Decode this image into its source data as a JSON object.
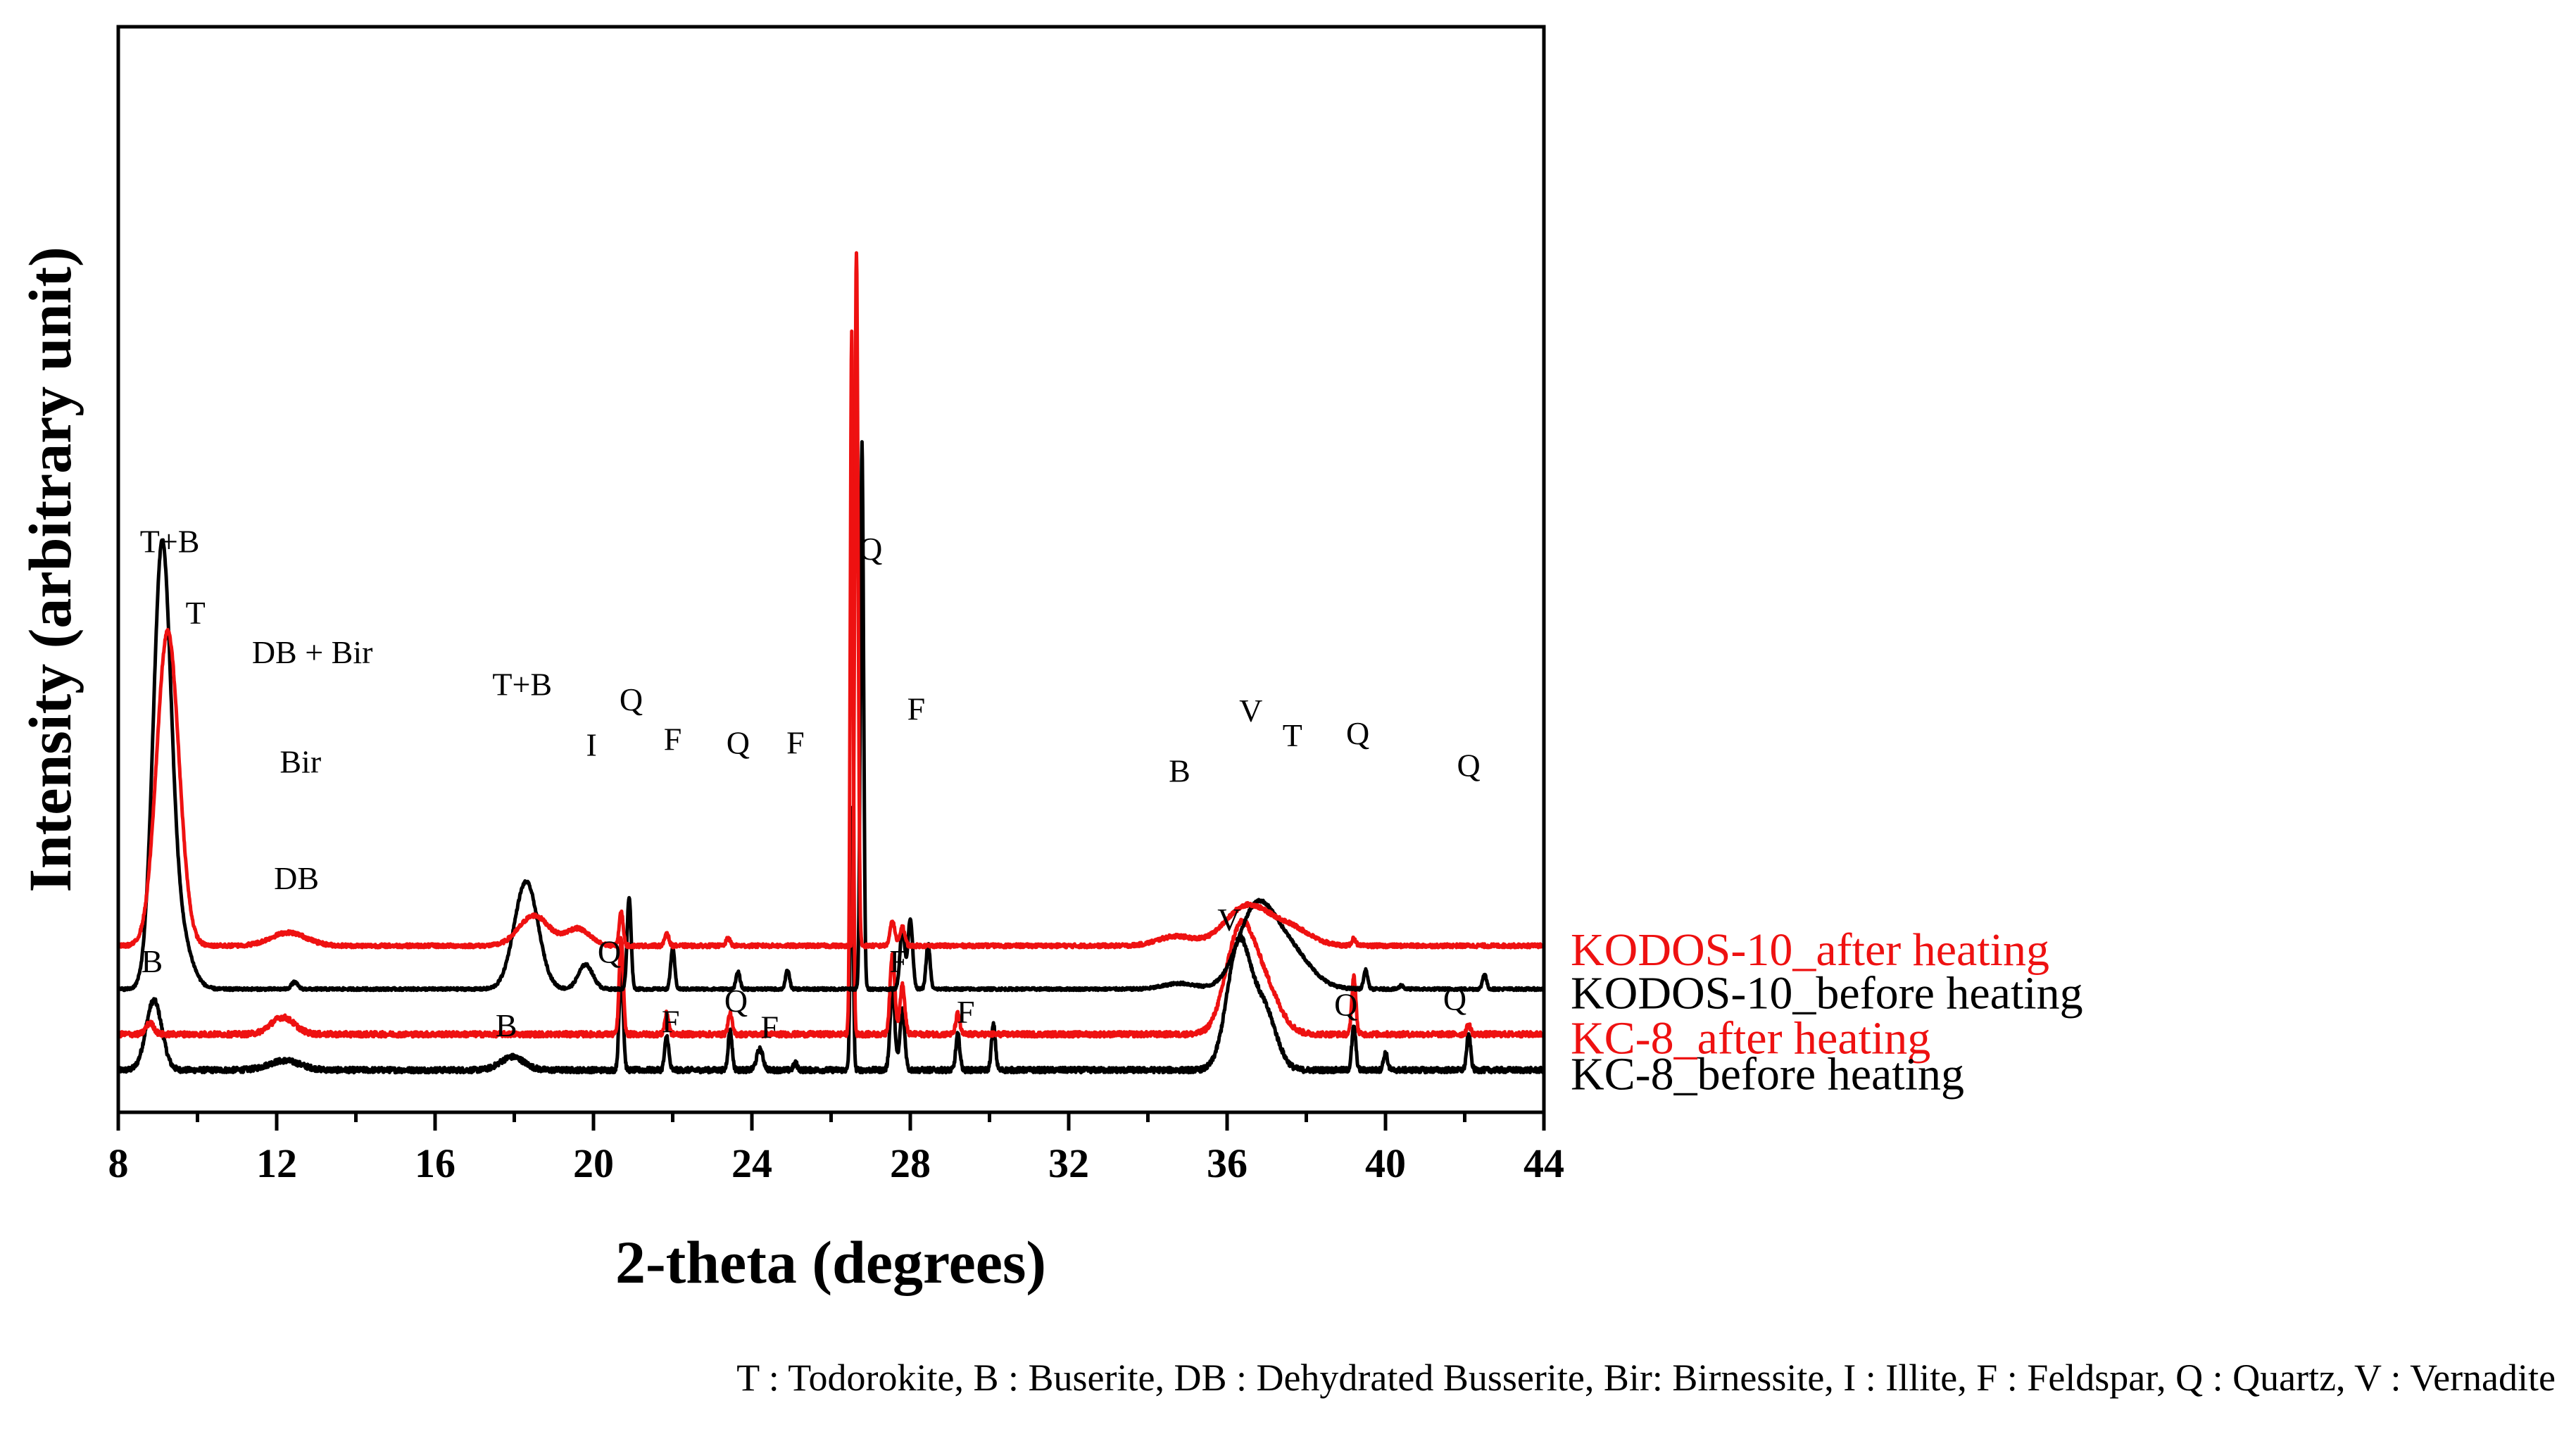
{
  "chart_data": {
    "type": "line",
    "xlabel": "2-theta (degrees)",
    "ylabel": "Intensity (arbitrary unit)",
    "xlim": [
      8,
      44
    ],
    "xticks": [
      "8",
      "12",
      "16",
      "20",
      "24",
      "28",
      "32",
      "36",
      "40",
      "44"
    ],
    "yticks_shown": false,
    "legend_text": "T : Todorokite, B : Buserite, DB : Dehydrated Busserite, Bir: Birnessite, I : Illite, F : Feldspar, Q : Quartz, V : Vernadite",
    "colors": {
      "black_series": "#000000",
      "red_series": "#ee1111"
    },
    "series": [
      {
        "name": "KODOS-10_after heating",
        "color": "#ee1111",
        "baseline": 3.3,
        "noise": 0.05,
        "peaks": [
          {
            "x": 9.25,
            "h": 8.35,
            "w": 0.28
          },
          {
            "x": 12.3,
            "h": 0.35,
            "w": 0.45
          },
          {
            "x": 18.5,
            "h": 0.8,
            "w": 0.38
          },
          {
            "x": 19.6,
            "h": 0.45,
            "w": 0.3
          },
          {
            "x": 20.7,
            "h": 0.9,
            "w": 0.05
          },
          {
            "x": 21.85,
            "h": 0.35,
            "w": 0.05
          },
          {
            "x": 23.4,
            "h": 0.2,
            "w": 0.05
          },
          {
            "x": 26.64,
            "h": 18.4,
            "w": 0.04
          },
          {
            "x": 27.55,
            "h": 0.65,
            "w": 0.06
          },
          {
            "x": 27.8,
            "h": 0.5,
            "w": 0.06
          },
          {
            "x": 34.7,
            "h": 0.25,
            "w": 0.45
          },
          {
            "x": 36.5,
            "h": 1.05,
            "w": 0.55
          },
          {
            "x": 37.6,
            "h": 0.45,
            "w": 0.5
          },
          {
            "x": 39.2,
            "h": 0.2,
            "w": 0.05
          }
        ]
      },
      {
        "name": "KODOS-10_before heating",
        "color": "#000000",
        "baseline": 2.15,
        "noise": 0.035,
        "peaks": [
          {
            "x": 9.1,
            "h": 11.25,
            "w": 0.22
          },
          {
            "x": 9.5,
            "h": 1.6,
            "w": 0.3
          },
          {
            "x": 12.45,
            "h": 0.18,
            "w": 0.08
          },
          {
            "x": 18.3,
            "h": 2.85,
            "w": 0.3
          },
          {
            "x": 19.8,
            "h": 0.65,
            "w": 0.18
          },
          {
            "x": 20.9,
            "h": 2.45,
            "w": 0.05
          },
          {
            "x": 22.0,
            "h": 1.1,
            "w": 0.05
          },
          {
            "x": 23.65,
            "h": 0.45,
            "w": 0.05
          },
          {
            "x": 24.9,
            "h": 0.5,
            "w": 0.05
          },
          {
            "x": 26.78,
            "h": 14.5,
            "w": 0.04
          },
          {
            "x": 27.8,
            "h": 1.65,
            "w": 0.06
          },
          {
            "x": 28.0,
            "h": 1.85,
            "w": 0.06
          },
          {
            "x": 28.45,
            "h": 1.2,
            "w": 0.05
          },
          {
            "x": 34.8,
            "h": 0.15,
            "w": 0.4
          },
          {
            "x": 36.7,
            "h": 1.9,
            "w": 0.45
          },
          {
            "x": 37.5,
            "h": 1.1,
            "w": 0.55
          },
          {
            "x": 39.5,
            "h": 0.5,
            "w": 0.05
          },
          {
            "x": 40.4,
            "h": 0.1,
            "w": 0.05
          },
          {
            "x": 42.5,
            "h": 0.4,
            "w": 0.05
          }
        ]
      },
      {
        "name": "KC-8_after heating",
        "color": "#ee1111",
        "baseline": 0.95,
        "noise": 0.07,
        "peaks": [
          {
            "x": 8.8,
            "h": 0.3,
            "w": 0.1
          },
          {
            "x": 12.15,
            "h": 0.45,
            "w": 0.3
          },
          {
            "x": 20.7,
            "h": 2.55,
            "w": 0.05
          },
          {
            "x": 21.85,
            "h": 0.55,
            "w": 0.05
          },
          {
            "x": 23.45,
            "h": 0.55,
            "w": 0.05
          },
          {
            "x": 26.52,
            "h": 18.6,
            "w": 0.035
          },
          {
            "x": 27.55,
            "h": 2.15,
            "w": 0.06
          },
          {
            "x": 27.8,
            "h": 1.3,
            "w": 0.06
          },
          {
            "x": 29.2,
            "h": 0.55,
            "w": 0.05
          },
          {
            "x": 36.3,
            "h": 2.5,
            "w": 0.35
          },
          {
            "x": 36.9,
            "h": 1.3,
            "w": 0.4
          },
          {
            "x": 39.2,
            "h": 1.55,
            "w": 0.05
          },
          {
            "x": 42.1,
            "h": 0.25,
            "w": 0.05
          }
        ]
      },
      {
        "name": "KC-8_before heating",
        "color": "#000000",
        "baseline": 0.0,
        "noise": 0.07,
        "peaks": [
          {
            "x": 8.9,
            "h": 1.85,
            "w": 0.2
          },
          {
            "x": 12.2,
            "h": 0.25,
            "w": 0.4
          },
          {
            "x": 17.95,
            "h": 0.35,
            "w": 0.3
          },
          {
            "x": 20.7,
            "h": 2.75,
            "w": 0.05
          },
          {
            "x": 21.85,
            "h": 0.9,
            "w": 0.05
          },
          {
            "x": 23.45,
            "h": 1.05,
            "w": 0.05
          },
          {
            "x": 24.2,
            "h": 0.55,
            "w": 0.08
          },
          {
            "x": 25.1,
            "h": 0.18,
            "w": 0.05
          },
          {
            "x": 26.52,
            "h": 7.0,
            "w": 0.035
          },
          {
            "x": 27.55,
            "h": 2.15,
            "w": 0.06
          },
          {
            "x": 27.8,
            "h": 1.6,
            "w": 0.06
          },
          {
            "x": 29.2,
            "h": 0.95,
            "w": 0.05
          },
          {
            "x": 30.1,
            "h": 1.2,
            "w": 0.05
          },
          {
            "x": 36.3,
            "h": 3.35,
            "w": 0.3
          },
          {
            "x": 36.95,
            "h": 1.5,
            "w": 0.3
          },
          {
            "x": 39.2,
            "h": 1.15,
            "w": 0.05
          },
          {
            "x": 40.0,
            "h": 0.45,
            "w": 0.05
          },
          {
            "x": 42.1,
            "h": 0.95,
            "w": 0.05
          }
        ]
      }
    ],
    "annotations": [
      {
        "text": "T+B",
        "x": 9.3,
        "y": 13.75
      },
      {
        "text": "T",
        "x": 9.95,
        "y": 11.85
      },
      {
        "text": "DB + Bir",
        "x": 12.9,
        "y": 10.8
      },
      {
        "text": "Q",
        "x": 27.0,
        "y": 13.55
      },
      {
        "text": "T+B",
        "x": 18.2,
        "y": 9.95
      },
      {
        "text": "Q",
        "x": 20.95,
        "y": 9.55
      },
      {
        "text": "I",
        "x": 19.95,
        "y": 8.35
      },
      {
        "text": "F",
        "x": 22.0,
        "y": 8.5
      },
      {
        "text": "Q",
        "x": 23.65,
        "y": 8.4
      },
      {
        "text": "F",
        "x": 25.1,
        "y": 8.4
      },
      {
        "text": "F",
        "x": 28.15,
        "y": 9.3
      },
      {
        "text": "Bir",
        "x": 12.6,
        "y": 7.9
      },
      {
        "text": "B",
        "x": 34.8,
        "y": 7.65
      },
      {
        "text": "V",
        "x": 36.6,
        "y": 9.25
      },
      {
        "text": "T",
        "x": 37.65,
        "y": 8.6
      },
      {
        "text": "Q",
        "x": 39.3,
        "y": 8.65
      },
      {
        "text": "Q",
        "x": 42.1,
        "y": 7.8
      },
      {
        "text": "DB",
        "x": 12.5,
        "y": 4.8
      },
      {
        "text": "B",
        "x": 8.85,
        "y": 2.6
      },
      {
        "text": "Q",
        "x": 20.4,
        "y": 2.85
      },
      {
        "text": "F",
        "x": 21.95,
        "y": 1.0
      },
      {
        "text": "Q",
        "x": 23.6,
        "y": 1.55
      },
      {
        "text": "F",
        "x": 24.45,
        "y": 0.85
      },
      {
        "text": "F",
        "x": 27.7,
        "y": 2.6
      },
      {
        "text": "F",
        "x": 29.4,
        "y": 1.25
      },
      {
        "text": "V",
        "x": 36.05,
        "y": 3.7
      },
      {
        "text": "B",
        "x": 17.8,
        "y": 0.9
      },
      {
        "text": "Q",
        "x": 39.0,
        "y": 1.45
      },
      {
        "text": "Q",
        "x": 41.75,
        "y": 1.6
      }
    ]
  }
}
